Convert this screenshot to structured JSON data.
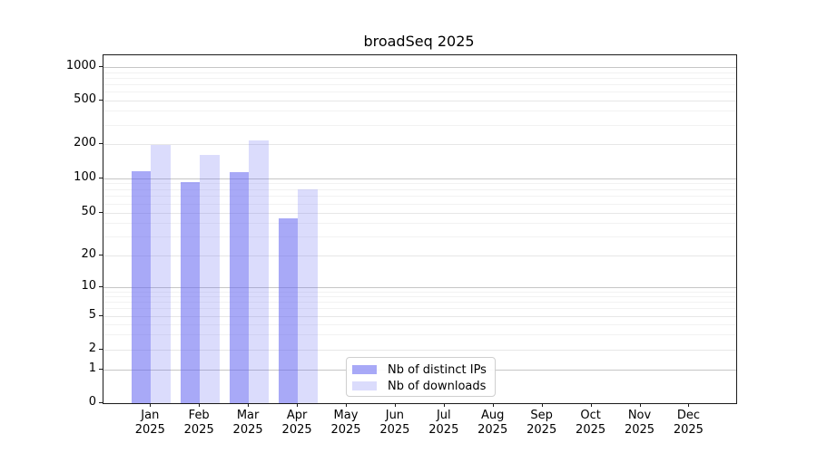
{
  "chart_data": {
    "type": "bar",
    "title": "broadSeq 2025",
    "categories": [
      "Jan",
      "Feb",
      "Mar",
      "Apr",
      "May",
      "Jun",
      "Jul",
      "Aug",
      "Sep",
      "Oct",
      "Nov",
      "Dec"
    ],
    "category_year": "2025",
    "series": [
      {
        "name": "Nb of distinct IPs",
        "color": "rgba(100,102,240,0.56)",
        "values": [
          116,
          93,
          112,
          44,
          0,
          0,
          0,
          0,
          0,
          0,
          0,
          0
        ]
      },
      {
        "name": "Nb of downloads",
        "color": "rgba(100,102,240,0.23)",
        "values": [
          197,
          162,
          218,
          79,
          0,
          0,
          0,
          0,
          0,
          0,
          0,
          0
        ]
      }
    ],
    "xlabel": "",
    "ylabel": "",
    "y_ticks": [
      0,
      1,
      2,
      5,
      10,
      20,
      50,
      100,
      200,
      500,
      1000
    ],
    "y_scale": "symlog",
    "ylim": [
      0,
      1280
    ],
    "grid": true,
    "legend_position": "bottom-center-right inside plot"
  }
}
